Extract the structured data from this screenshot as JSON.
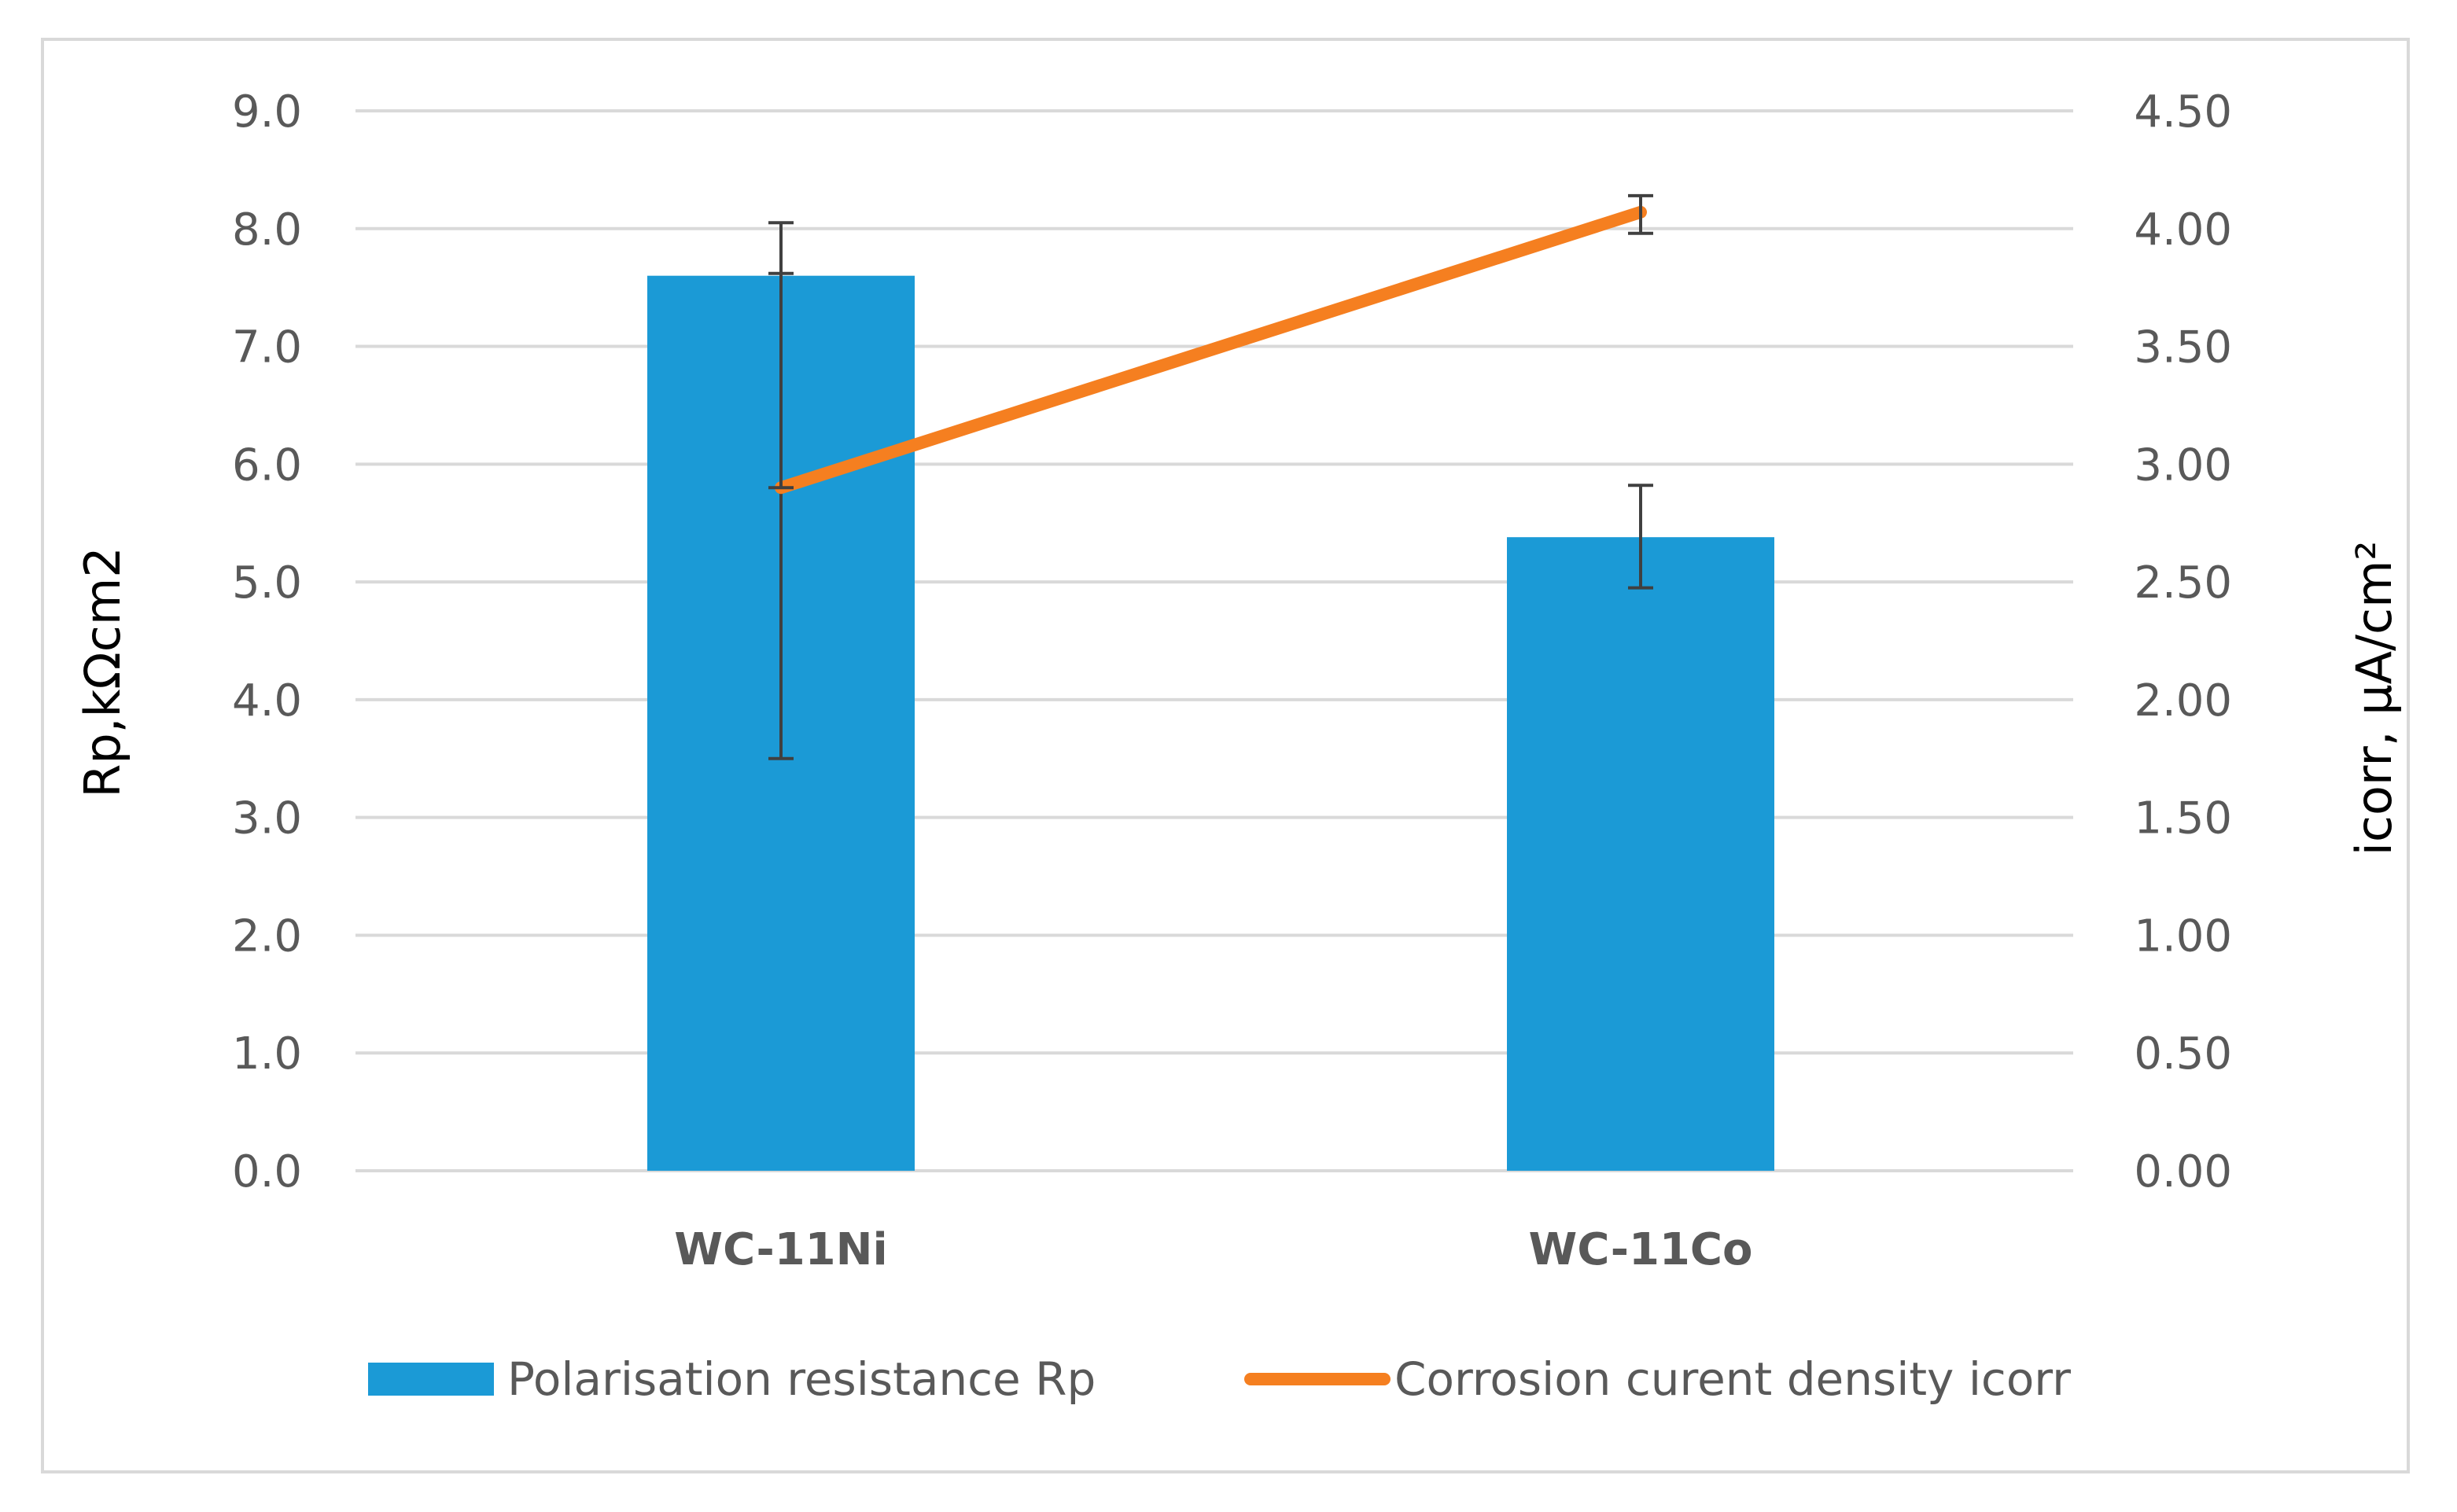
{
  "chart_data": {
    "type": "bar",
    "categories": [
      "WC-11Ni",
      "WC-11Co"
    ],
    "series": [
      {
        "name": "Polarisation resistance Rp",
        "type": "bar",
        "axis": "left",
        "values": [
          7.6,
          5.38
        ],
        "error_high": [
          8.05,
          5.82
        ],
        "error_low": [
          3.5,
          4.95
        ],
        "color": "#1b9ad6"
      },
      {
        "name": "Corrosion curent density icorr",
        "type": "line",
        "axis": "right",
        "values": [
          2.9,
          4.07
        ],
        "error_high": [
          3.81,
          4.14
        ],
        "error_low": [
          2.9,
          3.98
        ],
        "color": "#f57f20"
      }
    ],
    "ylabel": "Rp,kΩcm2",
    "y2label": "icorr, µA/cm²",
    "ylim": [
      0,
      9
    ],
    "y2lim": [
      0,
      4.5
    ],
    "yticks": [
      "0.0",
      "1.0",
      "2.0",
      "3.0",
      "4.0",
      "5.0",
      "6.0",
      "7.0",
      "8.0",
      "9.0"
    ],
    "y2ticks": [
      "0.00",
      "0.50",
      "1.00",
      "1.50",
      "2.00",
      "2.50",
      "3.00",
      "3.50",
      "4.00",
      "4.50"
    ],
    "grid": true,
    "legend_position": "bottom",
    "gridline_color": "#d9d9d9",
    "error_bar_color": "#404040"
  }
}
